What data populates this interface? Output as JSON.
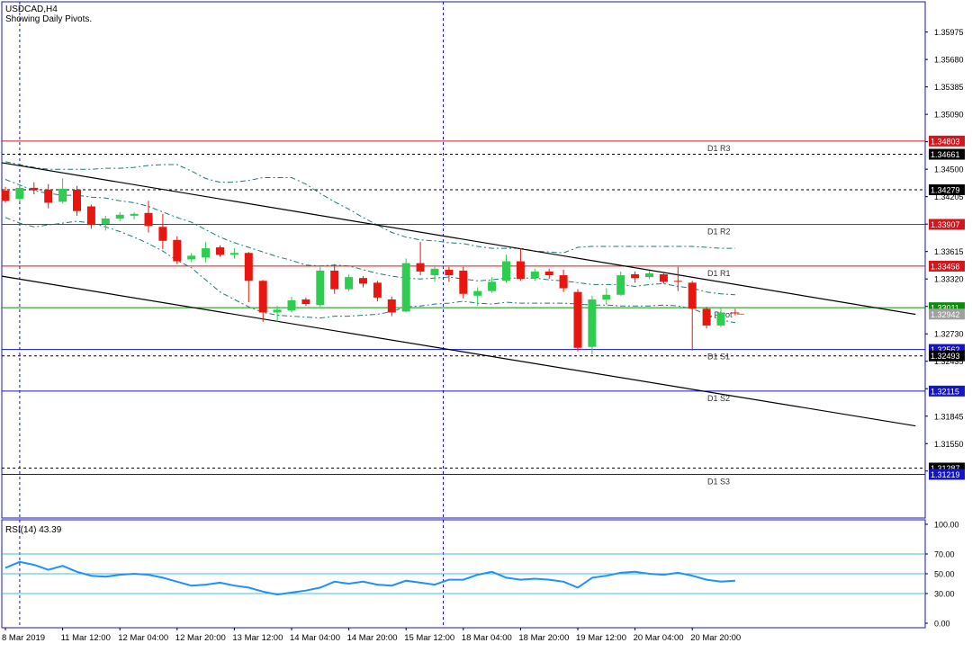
{
  "header": {
    "symbol_line": "USDCAD,H4",
    "indicator_line": "Showing Daily Pivots."
  },
  "colors": {
    "bull": "#2ecc4f",
    "bear": "#e8160e",
    "resistance": "#d4151b",
    "support": "#1414c8",
    "pivot": "#0e8a0e",
    "price_dashed": "#000000",
    "bollinger": "#1f7a7a",
    "rsi_line": "#1e90ff",
    "rsi_levels": "#4fb8d8",
    "vertical_separator": "#1414c8",
    "trendline": "#000000"
  },
  "chart_data": [
    {
      "type": "candlestick",
      "title": "USDCAD,H4",
      "ylim": [
        1.3075,
        1.363
      ],
      "y_ticks": [
        "1.35975",
        "1.35680",
        "1.35385",
        "1.35090",
        "1.34795",
        "1.34500",
        "1.34205",
        "1.33910",
        "1.33615",
        "1.33320",
        "1.33025",
        "1.32730",
        "1.32435",
        "1.32140",
        "1.31845",
        "1.31550",
        "1.31255"
      ],
      "price_labels": [
        {
          "text": "1.34803",
          "value": 1.34803,
          "style": "resistance"
        },
        {
          "text": "1.34661",
          "value": 1.34661,
          "style": "dark"
        },
        {
          "text": "1.34279",
          "value": 1.34279,
          "style": "dark"
        },
        {
          "text": "1.33907",
          "value": 1.33907,
          "style": "resistance"
        },
        {
          "text": "1.33458",
          "value": 1.33458,
          "style": "resistance"
        },
        {
          "text": "1.33011",
          "value": 1.33011,
          "style": "pivot"
        },
        {
          "text": "1.32942",
          "value": 1.32942,
          "style": "gray"
        },
        {
          "text": "1.32562",
          "value": 1.32562,
          "style": "support"
        },
        {
          "text": "1.32493",
          "value": 1.32493,
          "style": "dark"
        },
        {
          "text": "1.32115",
          "value": 1.32115,
          "style": "support"
        },
        {
          "text": "1.31287",
          "value": 1.31287,
          "style": "dark"
        },
        {
          "text": "1.31219",
          "value": 1.31219,
          "style": "support"
        }
      ],
      "pivot_levels": [
        {
          "name": "D1 R3",
          "value": 1.34803,
          "kind": "resistance"
        },
        {
          "name": "D1 R2",
          "value": 1.33907,
          "kind": "resistance"
        },
        {
          "name": "D1 R1",
          "value": 1.33458,
          "kind": "resistance"
        },
        {
          "name": "D1 Pivot",
          "value": 1.33011,
          "kind": "pivot"
        },
        {
          "name": "D1 S1",
          "value": 1.32562,
          "kind": "support"
        },
        {
          "name": "D1 S2",
          "value": 1.32115,
          "kind": "support"
        },
        {
          "name": "D1 S3",
          "value": 1.31219,
          "kind": "support"
        }
      ],
      "pivot_visible_labels": [
        "D1 R3",
        "D1 R2",
        "D1 R1",
        "1 Pivot",
        "D1 S1",
        "D1 S2",
        "D1 S3"
      ],
      "dashed_levels": [
        1.34661,
        1.34279,
        1.32493,
        1.31287
      ],
      "trendlines": [
        {
          "from": [
            0,
            1.3457
          ],
          "to": [
            63.6,
            1.3294
          ]
        },
        {
          "from": [
            0,
            1.3335
          ],
          "to": [
            63.6,
            1.3174
          ]
        }
      ],
      "vertical_separators": [
        1,
        30.6
      ],
      "x_labels": [
        {
          "index": 0,
          "text": "8 Mar 2019"
        },
        {
          "index": 4,
          "text": "11 Mar 12:00"
        },
        {
          "index": 8,
          "text": "12 Mar 04:00"
        },
        {
          "index": 12,
          "text": "12 Mar 20:00"
        },
        {
          "index": 16,
          "text": "13 Mar 12:00"
        },
        {
          "index": 20,
          "text": "14 Mar 04:00"
        },
        {
          "index": 24,
          "text": "14 Mar 20:00"
        },
        {
          "index": 28,
          "text": "15 Mar 12:00"
        },
        {
          "index": 32,
          "text": "18 Mar 04:00"
        },
        {
          "index": 36,
          "text": "18 Mar 20:00"
        },
        {
          "index": 40,
          "text": "19 Mar 12:00"
        },
        {
          "index": 44,
          "text": "20 Mar 04:00"
        },
        {
          "index": 48,
          "text": "20 Mar 20:00"
        }
      ],
      "candles": [
        {
          "o": 1.3427,
          "h": 1.3431,
          "l": 1.3414,
          "c": 1.3416
        },
        {
          "o": 1.3418,
          "h": 1.3434,
          "l": 1.3415,
          "c": 1.343
        },
        {
          "o": 1.343,
          "h": 1.3436,
          "l": 1.3423,
          "c": 1.3428
        },
        {
          "o": 1.3428,
          "h": 1.3434,
          "l": 1.3408,
          "c": 1.3414
        },
        {
          "o": 1.3415,
          "h": 1.344,
          "l": 1.3413,
          "c": 1.3429
        },
        {
          "o": 1.3428,
          "h": 1.3432,
          "l": 1.34,
          "c": 1.3405
        },
        {
          "o": 1.341,
          "h": 1.3412,
          "l": 1.3386,
          "c": 1.339
        },
        {
          "o": 1.3391,
          "h": 1.34,
          "l": 1.3384,
          "c": 1.3397
        },
        {
          "o": 1.3397,
          "h": 1.3404,
          "l": 1.3394,
          "c": 1.3401
        },
        {
          "o": 1.34,
          "h": 1.3404,
          "l": 1.3396,
          "c": 1.3402
        },
        {
          "o": 1.3403,
          "h": 1.3416,
          "l": 1.3382,
          "c": 1.3389
        },
        {
          "o": 1.3388,
          "h": 1.3402,
          "l": 1.3364,
          "c": 1.3373
        },
        {
          "o": 1.3374,
          "h": 1.3378,
          "l": 1.3348,
          "c": 1.3351
        },
        {
          "o": 1.3353,
          "h": 1.336,
          "l": 1.335,
          "c": 1.3357
        },
        {
          "o": 1.3355,
          "h": 1.3372,
          "l": 1.335,
          "c": 1.3365
        },
        {
          "o": 1.3366,
          "h": 1.3368,
          "l": 1.3356,
          "c": 1.3358
        },
        {
          "o": 1.3358,
          "h": 1.3365,
          "l": 1.3354,
          "c": 1.336
        },
        {
          "o": 1.336,
          "h": 1.3361,
          "l": 1.3307,
          "c": 1.333
        },
        {
          "o": 1.333,
          "h": 1.3331,
          "l": 1.3286,
          "c": 1.3296
        },
        {
          "o": 1.3296,
          "h": 1.3303,
          "l": 1.3286,
          "c": 1.3299
        },
        {
          "o": 1.3298,
          "h": 1.3313,
          "l": 1.3296,
          "c": 1.3309
        },
        {
          "o": 1.331,
          "h": 1.3312,
          "l": 1.3303,
          "c": 1.3305
        },
        {
          "o": 1.3304,
          "h": 1.3345,
          "l": 1.3302,
          "c": 1.3341
        },
        {
          "o": 1.3341,
          "h": 1.3348,
          "l": 1.3316,
          "c": 1.3321
        },
        {
          "o": 1.3321,
          "h": 1.3337,
          "l": 1.3319,
          "c": 1.3334
        },
        {
          "o": 1.3333,
          "h": 1.3335,
          "l": 1.3323,
          "c": 1.3327
        },
        {
          "o": 1.3328,
          "h": 1.333,
          "l": 1.3308,
          "c": 1.3312
        },
        {
          "o": 1.331,
          "h": 1.3313,
          "l": 1.3292,
          "c": 1.3296
        },
        {
          "o": 1.3297,
          "h": 1.3354,
          "l": 1.3296,
          "c": 1.3349
        },
        {
          "o": 1.3349,
          "h": 1.3372,
          "l": 1.3336,
          "c": 1.334
        },
        {
          "o": 1.3336,
          "h": 1.3345,
          "l": 1.3329,
          "c": 1.3343
        },
        {
          "o": 1.3342,
          "h": 1.3345,
          "l": 1.3329,
          "c": 1.3336
        },
        {
          "o": 1.3341,
          "h": 1.3345,
          "l": 1.3311,
          "c": 1.3316
        },
        {
          "o": 1.3314,
          "h": 1.3323,
          "l": 1.3303,
          "c": 1.3319
        },
        {
          "o": 1.3319,
          "h": 1.3334,
          "l": 1.3317,
          "c": 1.3329
        },
        {
          "o": 1.333,
          "h": 1.3358,
          "l": 1.3328,
          "c": 1.3351
        },
        {
          "o": 1.3351,
          "h": 1.3365,
          "l": 1.333,
          "c": 1.3332
        },
        {
          "o": 1.3333,
          "h": 1.3343,
          "l": 1.333,
          "c": 1.334
        },
        {
          "o": 1.334,
          "h": 1.3343,
          "l": 1.3332,
          "c": 1.3336
        },
        {
          "o": 1.3336,
          "h": 1.3342,
          "l": 1.3318,
          "c": 1.3322
        },
        {
          "o": 1.3318,
          "h": 1.3321,
          "l": 1.3254,
          "c": 1.3258
        },
        {
          "o": 1.3259,
          "h": 1.3314,
          "l": 1.3251,
          "c": 1.331
        },
        {
          "o": 1.331,
          "h": 1.3322,
          "l": 1.3304,
          "c": 1.3315
        },
        {
          "o": 1.3315,
          "h": 1.334,
          "l": 1.3314,
          "c": 1.3336
        },
        {
          "o": 1.3337,
          "h": 1.334,
          "l": 1.3328,
          "c": 1.3333
        },
        {
          "o": 1.3334,
          "h": 1.3341,
          "l": 1.3332,
          "c": 1.3338
        },
        {
          "o": 1.3337,
          "h": 1.334,
          "l": 1.3327,
          "c": 1.3329
        },
        {
          "o": 1.333,
          "h": 1.3345,
          "l": 1.3319,
          "c": 1.3329
        },
        {
          "o": 1.3328,
          "h": 1.333,
          "l": 1.3255,
          "c": 1.33
        },
        {
          "o": 1.33,
          "h": 1.3302,
          "l": 1.3279,
          "c": 1.3282
        },
        {
          "o": 1.3282,
          "h": 1.3301,
          "l": 1.328,
          "c": 1.3296
        },
        {
          "o": 1.3296,
          "h": 1.33,
          "l": 1.3293,
          "c": 1.3295
        }
      ],
      "bollinger": {
        "upper": [
          1.3458,
          1.3455,
          1.3452,
          1.345,
          1.345,
          1.345,
          1.345,
          1.3451,
          1.3451,
          1.3452,
          1.3454,
          1.3455,
          1.3455,
          1.3448,
          1.344,
          1.3436,
          1.3436,
          1.3438,
          1.3441,
          1.3441,
          1.3441,
          1.3434,
          1.3424,
          1.3415,
          1.3407,
          1.3398,
          1.339,
          1.3382,
          1.3377,
          1.3374,
          1.3373,
          1.3371,
          1.337,
          1.3367,
          1.3365,
          1.3365,
          1.3365,
          1.3362,
          1.3361,
          1.336,
          1.3366,
          1.3367,
          1.3367,
          1.3367,
          1.3367,
          1.3367,
          1.3367,
          1.3367,
          1.3367,
          1.3366,
          1.3365,
          1.3365
        ],
        "middle": [
          1.3439,
          1.3433,
          1.3427,
          1.3424,
          1.3422,
          1.3422,
          1.342,
          1.3419,
          1.3416,
          1.3414,
          1.341,
          1.3404,
          1.3398,
          1.3393,
          1.3385,
          1.3377,
          1.3371,
          1.3366,
          1.3361,
          1.3356,
          1.3352,
          1.3347,
          1.3346,
          1.3347,
          1.3346,
          1.3342,
          1.3338,
          1.3335,
          1.3333,
          1.3332,
          1.3333,
          1.3334,
          1.3332,
          1.333,
          1.3331,
          1.3333,
          1.3333,
          1.3333,
          1.3331,
          1.333,
          1.3328,
          1.3326,
          1.3326,
          1.3326,
          1.3324,
          1.3326,
          1.3327,
          1.3324,
          1.3322,
          1.3318,
          1.3316,
          1.3315
        ],
        "lower": [
          1.3398,
          1.3392,
          1.3388,
          1.339,
          1.3392,
          1.3394,
          1.3392,
          1.3388,
          1.3383,
          1.3377,
          1.337,
          1.3362,
          1.3352,
          1.3344,
          1.3331,
          1.3318,
          1.331,
          1.3302,
          1.3296,
          1.3293,
          1.3292,
          1.3291,
          1.329,
          1.3292,
          1.3292,
          1.3293,
          1.3294,
          1.3297,
          1.3302,
          1.3303,
          1.3305,
          1.3306,
          1.3308,
          1.3306,
          1.3305,
          1.3307,
          1.3306,
          1.3306,
          1.3306,
          1.3306,
          1.3305,
          1.3304,
          1.3304,
          1.3303,
          1.3303,
          1.3303,
          1.3304,
          1.3303,
          1.33,
          1.3294,
          1.3288,
          1.3285
        ]
      },
      "last_marker": {
        "value": 1.32942,
        "text": "1.32942"
      }
    },
    {
      "type": "line",
      "title": "RSI(14) 43.39",
      "ylim": [
        0,
        100
      ],
      "y_ticks": [
        "100.00",
        "70.00",
        "50.00",
        "30.00",
        "0.00"
      ],
      "levels": [
        70,
        50,
        30
      ],
      "series": [
        {
          "values": [
            56,
            62,
            59,
            54,
            58,
            52,
            48,
            47,
            49,
            50,
            49,
            46,
            42,
            38,
            39,
            41,
            38,
            36,
            32,
            29,
            31,
            33,
            36,
            42,
            40,
            42,
            39,
            38,
            43,
            41,
            39,
            44,
            44,
            49,
            52,
            46,
            44,
            45,
            44,
            42,
            36,
            46,
            48,
            51,
            52,
            50,
            49,
            51,
            48,
            44,
            42,
            43
          ]
        }
      ]
    }
  ]
}
